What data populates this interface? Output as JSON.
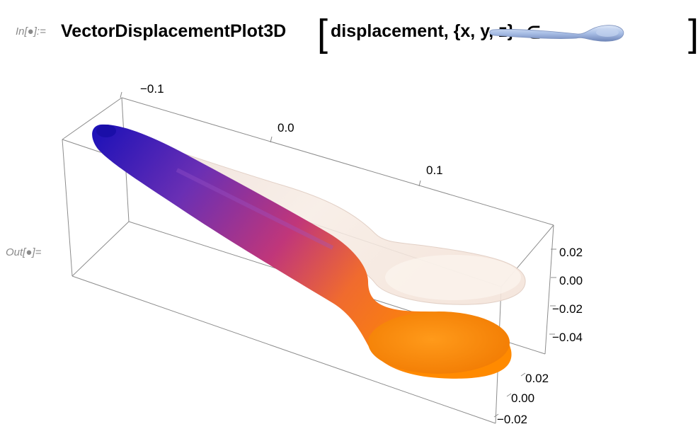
{
  "notebook": {
    "input_label": "In[●]:=",
    "output_label": "Out[●]="
  },
  "code": {
    "function": "VectorDisplacementPlot3D",
    "open_bracket": "[",
    "args": "displacement, {x, y, z}",
    "element_symbol": "∈",
    "close_bracket": "]",
    "region_icon": "spoon-icon"
  },
  "plot": {
    "x_ticks": [
      "−0.1",
      "0.0",
      "0.1"
    ],
    "z_ticks": [
      "0.02",
      "0.00",
      "−0.02",
      "−0.04"
    ],
    "y_ticks": [
      "0.02",
      "0.00",
      "−0.02"
    ],
    "colors": {
      "gradient_start": "#1a10b8",
      "gradient_mid": "#c0367a",
      "gradient_end": "#ff8a00",
      "ghost_spoon": "#f3e7df",
      "box_edge": "#8c8c8c"
    }
  }
}
